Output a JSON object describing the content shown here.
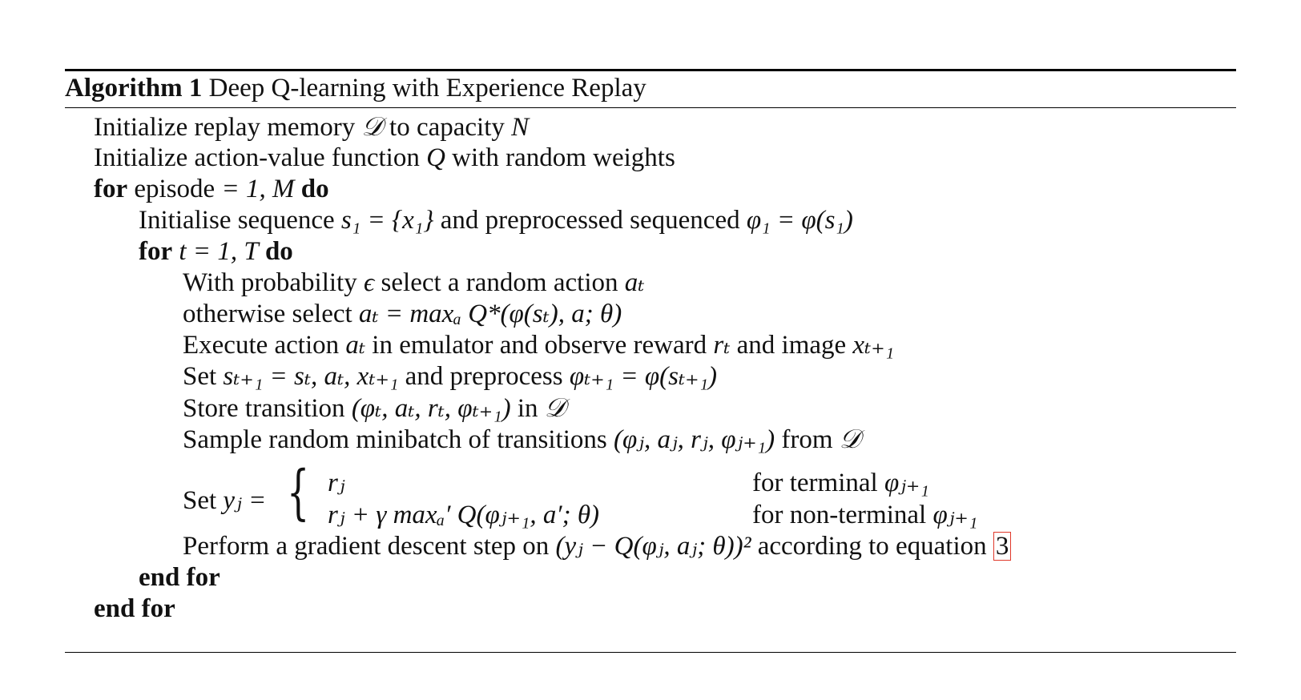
{
  "caption": {
    "label": "Algorithm 1",
    "title": "Deep Q-learning with Experience Replay"
  },
  "lines": [
    {
      "text_a": "Initialize replay memory ",
      "math_a": "𝒟",
      "text_b": " to capacity ",
      "math_b": "N"
    },
    {
      "text_a": "Initialize action-value function ",
      "math_a": "Q",
      "text_b": " with random weights"
    },
    {
      "kw_a": "for",
      "text_a": " episode ",
      "math_a": "= 1, M",
      "kw_b": "do"
    },
    {
      "text_a": "Initialise sequence ",
      "math_a": "s₁ = {x₁}",
      "text_b": " and preprocessed sequenced ",
      "math_b": "φ₁ = φ(s₁)"
    },
    {
      "kw_a": "for",
      "math_a": "t = 1, T",
      "kw_b": "do"
    },
    {
      "text_a": "With probability ",
      "math_a": "ϵ",
      "text_b": " select a random action ",
      "math_b": "aₜ"
    },
    {
      "text_a": "otherwise select ",
      "math_a": "aₜ = maxₐ Q*(φ(sₜ), a; θ)"
    },
    {
      "text_a": "Execute action ",
      "math_a": "aₜ",
      "text_b": " in emulator and observe reward ",
      "math_b": "rₜ",
      "text_c": " and image ",
      "math_c": "xₜ₊₁"
    },
    {
      "text_a": "Set ",
      "math_a": "sₜ₊₁ = sₜ, aₜ, xₜ₊₁",
      "text_b": " and preprocess ",
      "math_b": "φₜ₊₁ = φ(sₜ₊₁)"
    },
    {
      "text_a": "Store transition ",
      "math_a": "(φₜ, aₜ, rₜ, φₜ₊₁)",
      "text_b": " in ",
      "math_b": "𝒟"
    },
    {
      "text_a": "Sample random minibatch of transitions ",
      "math_a": "(φⱼ, aⱼ, rⱼ, φⱼ₊₁)",
      "text_b": " from ",
      "math_b": "𝒟"
    },
    {
      "text_a": "Set ",
      "math_a": "yⱼ ="
    },
    {
      "text_a": "Perform a gradient descent step on ",
      "math_a": "(yⱼ − Q(φⱼ, aⱼ; θ))²",
      "text_b": " according to equation ",
      "ref": "3"
    },
    {
      "kw_a": "end for"
    },
    {
      "kw_a": "end for"
    }
  ],
  "cases": [
    {
      "expr": "rⱼ",
      "cond_text": "for terminal ",
      "cond_math": "φⱼ₊₁"
    },
    {
      "expr": "rⱼ + γ maxₐ′ Q(φⱼ₊₁, a′; θ)",
      "cond_text": "for non-terminal ",
      "cond_math": "φⱼ₊₁"
    }
  ],
  "colors": {
    "text": "#111111",
    "rule": "#000000",
    "ref_box": "#e0392b"
  }
}
